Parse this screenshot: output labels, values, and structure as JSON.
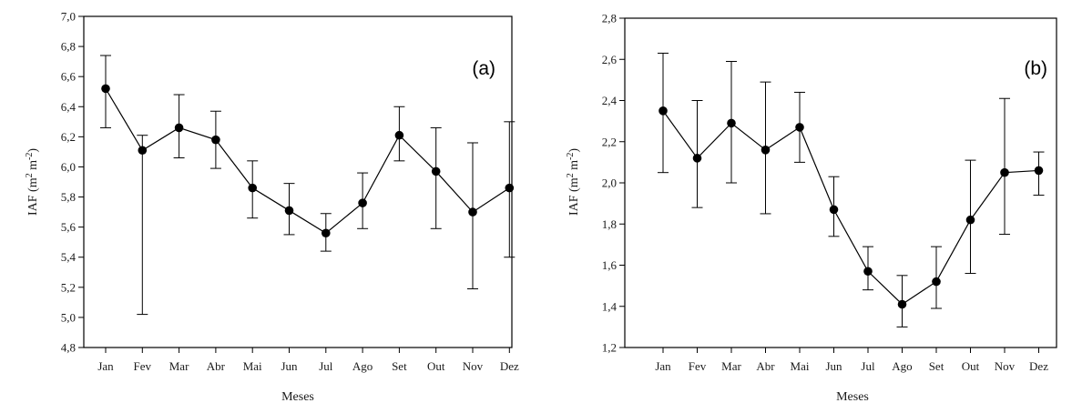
{
  "chart_data": [
    {
      "type": "line",
      "panel_label": "(a)",
      "xlabel": "Meses",
      "ylabel": "IAF (m",
      "ylabel_sup1": "2",
      "ylabel_mid": " m",
      "ylabel_sup2": "-2",
      "ylabel_end": ")",
      "categories": [
        "Jan",
        "Fev",
        "Mar",
        "Abr",
        "Mai",
        "Jun",
        "Jul",
        "Ago",
        "Set",
        "Out",
        "Nov",
        "Dez"
      ],
      "series": [
        {
          "values": [
            6.52,
            6.11,
            6.26,
            6.18,
            5.86,
            5.71,
            5.56,
            5.76,
            6.21,
            5.97,
            5.7,
            5.86
          ],
          "err_high": [
            6.74,
            6.21,
            6.48,
            6.37,
            6.04,
            5.89,
            5.69,
            5.96,
            6.4,
            6.26,
            6.16,
            6.3
          ],
          "err_low": [
            6.26,
            5.02,
            6.06,
            5.99,
            5.66,
            5.55,
            5.44,
            5.59,
            6.04,
            5.59,
            5.19,
            5.4
          ]
        }
      ],
      "ylim": [
        4.8,
        7.0
      ],
      "yticks": [
        "4,8",
        "5,0",
        "5,2",
        "5,4",
        "5,6",
        "5,8",
        "6,0",
        "6,2",
        "6,4",
        "6,6",
        "6,8",
        "7,0"
      ],
      "grid": false
    },
    {
      "type": "line",
      "panel_label": "(b)",
      "xlabel": "Meses",
      "ylabel": "IAF (m",
      "ylabel_sup1": "2",
      "ylabel_mid": " m",
      "ylabel_sup2": "-2",
      "ylabel_end": ")",
      "categories": [
        "Jan",
        "Fev",
        "Mar",
        "Abr",
        "Mai",
        "Jun",
        "Jul",
        "Ago",
        "Set",
        "Out",
        "Nov",
        "Dez"
      ],
      "series": [
        {
          "values": [
            2.35,
            2.12,
            2.29,
            2.16,
            2.27,
            1.87,
            1.57,
            1.41,
            1.52,
            1.82,
            2.05,
            2.06
          ],
          "err_high": [
            2.63,
            2.4,
            2.59,
            2.49,
            2.44,
            2.03,
            1.69,
            1.55,
            1.69,
            2.11,
            2.41,
            2.15
          ],
          "err_low": [
            2.05,
            1.88,
            2.0,
            1.85,
            2.1,
            1.74,
            1.48,
            1.3,
            1.39,
            1.56,
            1.75,
            1.94
          ]
        }
      ],
      "ylim": [
        1.2,
        2.8
      ],
      "yticks": [
        "1,2",
        "1,4",
        "1,6",
        "1,8",
        "2,0",
        "2,2",
        "2,4",
        "2,6",
        "2,8"
      ],
      "grid": false
    }
  ]
}
